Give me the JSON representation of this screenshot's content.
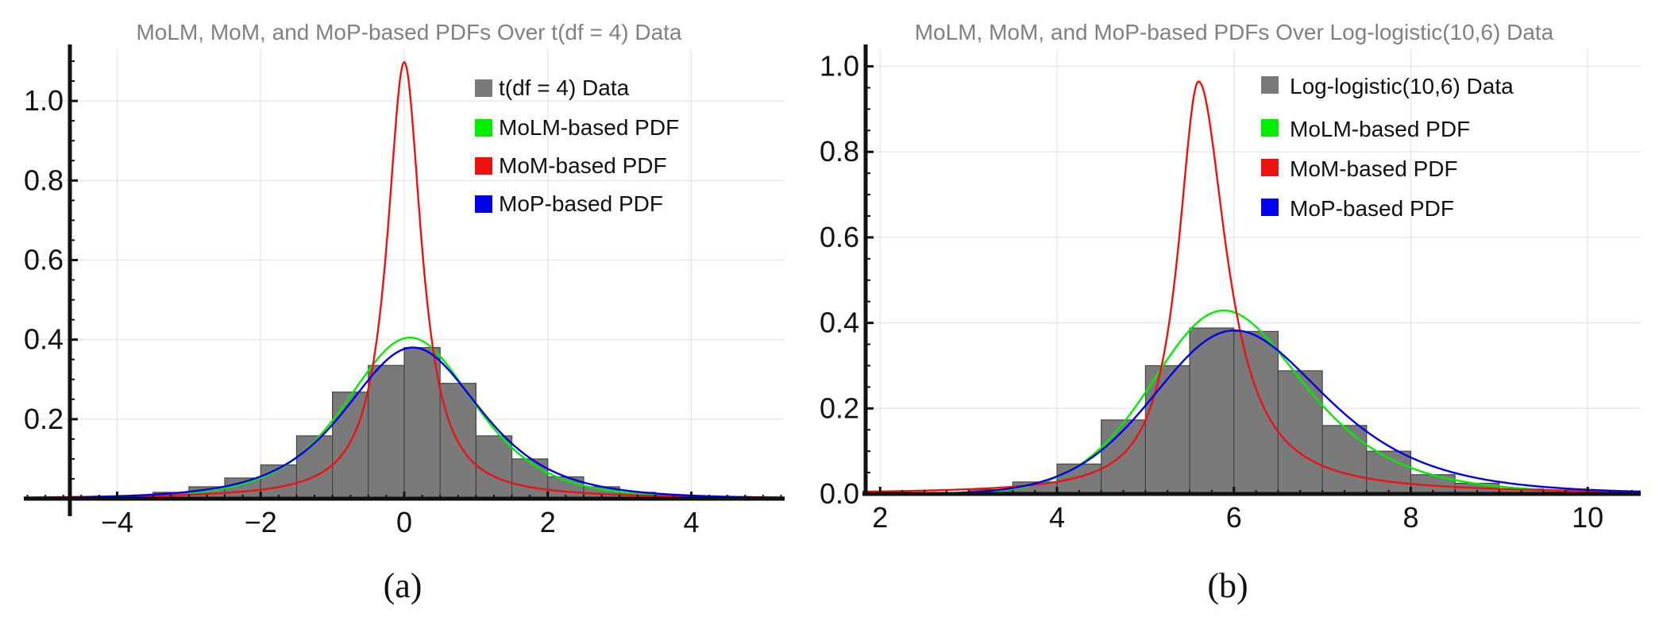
{
  "figures": [
    {
      "caption": "(a)"
    },
    {
      "caption": "(b)"
    }
  ],
  "chart_data": [
    {
      "type": "bar",
      "title": "MoLM, MoM, and MoP-based PDFs Over t(df = 4) Data",
      "xlabel": "",
      "ylabel": "",
      "xlim": [
        -5.3,
        5.3
      ],
      "ylim": [
        0,
        1.13
      ],
      "x_ticks": [
        {
          "value": -4,
          "label": "−4"
        },
        {
          "value": -2,
          "label": "−2"
        },
        {
          "value": 0,
          "label": "0"
        },
        {
          "value": 2,
          "label": "2"
        },
        {
          "value": 4,
          "label": "4"
        }
      ],
      "y_ticks": [
        {
          "value": 0.2,
          "label": "0.2"
        },
        {
          "value": 0.4,
          "label": "0.4"
        },
        {
          "value": 0.6,
          "label": "0.6"
        },
        {
          "value": 0.8,
          "label": "0.8"
        },
        {
          "value": 1.0,
          "label": "1.0"
        }
      ],
      "grid": true,
      "legend_position": "top-right",
      "histogram": {
        "name": "t(df = 4) Data",
        "color": "#7a7a7a",
        "bin_width": 0.5,
        "bin_starts": [
          -5.0,
          -4.5,
          -4.0,
          -3.5,
          -3.0,
          -2.5,
          -2.0,
          -1.5,
          -1.0,
          -0.5,
          0.0,
          0.5,
          1.0,
          1.5,
          2.0,
          2.5,
          3.0,
          3.5,
          4.0,
          4.5
        ],
        "heights": [
          0.002,
          0.004,
          0.008,
          0.016,
          0.03,
          0.052,
          0.085,
          0.158,
          0.268,
          0.335,
          0.38,
          0.29,
          0.158,
          0.1,
          0.055,
          0.03,
          0.016,
          0.008,
          0.004,
          0.002
        ]
      },
      "series": [
        {
          "name": "MoLM-based PDF",
          "color": "#00ee00",
          "kind": "student_t",
          "df": 4.3,
          "loc": 0.08,
          "scale": 0.93
        },
        {
          "name": "MoM-based PDF",
          "color": "#ee1111",
          "kind": "cauchy",
          "loc": 0.0,
          "scale": 0.29
        },
        {
          "name": "MoP-based PDF",
          "color": "#0000ee",
          "kind": "student_t",
          "df": 3.6,
          "loc": 0.12,
          "scale": 0.98
        }
      ]
    },
    {
      "type": "bar",
      "title": "MoLM, MoM, and MoP-based PDFs Over Log-logistic(10,6) Data",
      "xlabel": "",
      "ylabel": "",
      "xlim": [
        1.8,
        10.6
      ],
      "ylim": [
        0,
        1.04
      ],
      "x_ticks": [
        {
          "value": 2,
          "label": "2"
        },
        {
          "value": 4,
          "label": "4"
        },
        {
          "value": 6,
          "label": "6"
        },
        {
          "value": 8,
          "label": "8"
        },
        {
          "value": 10,
          "label": "10"
        }
      ],
      "y_ticks": [
        {
          "value": 0.0,
          "label": "0.0"
        },
        {
          "value": 0.2,
          "label": "0.2"
        },
        {
          "value": 0.4,
          "label": "0.4"
        },
        {
          "value": 0.6,
          "label": "0.6"
        },
        {
          "value": 0.8,
          "label": "0.8"
        },
        {
          "value": 1.0,
          "label": "1.0"
        }
      ],
      "grid": true,
      "legend_position": "top-right",
      "histogram": {
        "name": "Log-logistic(10,6) Data",
        "color": "#7a7a7a",
        "bin_width": 0.5,
        "bin_starts": [
          2.5,
          3.0,
          3.5,
          4.0,
          4.5,
          5.0,
          5.5,
          6.0,
          6.5,
          7.0,
          7.5,
          8.0,
          8.5,
          9.0,
          9.5
        ],
        "heights": [
          0.002,
          0.01,
          0.028,
          0.07,
          0.173,
          0.3,
          0.388,
          0.38,
          0.288,
          0.16,
          0.1,
          0.045,
          0.025,
          0.012,
          0.005
        ]
      },
      "series": [
        {
          "name": "MoLM-based PDF",
          "color": "#00ee00",
          "kind": "loglogistic",
          "alpha": 6.0,
          "beta": 10.2
        },
        {
          "name": "MoM-based PDF",
          "color": "#ee1111",
          "kind": "cauchy_skew",
          "loc": 5.6,
          "scale_left": 0.28,
          "scale_right": 0.38
        },
        {
          "name": "MoP-based PDF",
          "color": "#0000ee",
          "kind": "loglogistic",
          "alpha": 6.15,
          "beta": 9.3
        }
      ]
    }
  ]
}
